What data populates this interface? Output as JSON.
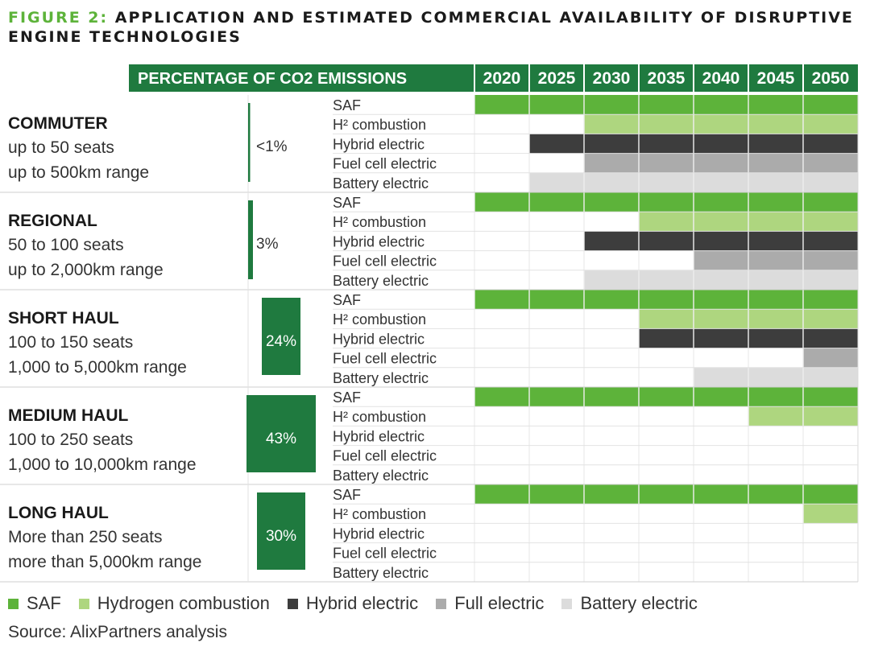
{
  "title": {
    "label": "FIGURE 2:",
    "text": "APPLICATION AND ESTIMATED COMMERCIAL AVAILABILITY OF DISRUPTIVE ENGINE TECHNOLOGIES"
  },
  "source": "Source: AlixPartners analysis",
  "colors": {
    "header_bg": "#1f7a3f",
    "emission_bar": "#1f7a3f",
    "SAF": "#5db33a",
    "Hydrogen combustion": "#aed67f",
    "Hybrid electric": "#3d3d3d",
    "Full electric": "#ababab",
    "Battery electric": "#dcdcdc"
  },
  "chart_data": {
    "type": "table",
    "header_label": "PERCENTAGE OF CO2 EMISSIONS",
    "years": [
      "2020",
      "2025",
      "2030",
      "2035",
      "2040",
      "2045",
      "2050"
    ],
    "technologies": [
      "SAF",
      "H² combustion",
      "Hybrid electric",
      "Fuel cell electric",
      "Battery electric"
    ],
    "legend": [
      {
        "name": "SAF"
      },
      {
        "name": "Hydrogen combustion"
      },
      {
        "name": "Hybrid electric"
      },
      {
        "name": "Full electric"
      },
      {
        "name": "Battery electric"
      }
    ],
    "segments": [
      {
        "name": "COMMUTER",
        "seats": "up to 50 seats",
        "range": "up to 500km range",
        "emissions_percent": 0.5,
        "emissions_label": "<1%",
        "availability_start": {
          "SAF": "2020",
          "H² combustion": "2030",
          "Hybrid electric": "2025",
          "Fuel cell electric": "2030",
          "Battery electric": "2025"
        }
      },
      {
        "name": "REGIONAL",
        "seats": "50 to 100 seats",
        "range": "up to 2,000km range",
        "emissions_percent": 3,
        "emissions_label": "3%",
        "availability_start": {
          "SAF": "2020",
          "H² combustion": "2035",
          "Hybrid electric": "2030",
          "Fuel cell electric": "2040",
          "Battery electric": "2030"
        }
      },
      {
        "name": "SHORT HAUL",
        "seats": "100 to 150 seats",
        "range": "1,000 to 5,000km range",
        "emissions_percent": 24,
        "emissions_label": "24%",
        "availability_start": {
          "SAF": "2020",
          "H² combustion": "2035",
          "Hybrid electric": "2035",
          "Fuel cell electric": "2050",
          "Battery electric": "2040"
        }
      },
      {
        "name": "MEDIUM HAUL",
        "seats": "100 to 250 seats",
        "range": "1,000 to 10,000km range",
        "emissions_percent": 43,
        "emissions_label": "43%",
        "availability_start": {
          "SAF": "2020",
          "H² combustion": "2045",
          "Hybrid electric": null,
          "Fuel cell electric": null,
          "Battery electric": null
        }
      },
      {
        "name": "LONG HAUL",
        "seats": "More than 250 seats",
        "range": "more than 5,000km range",
        "emissions_percent": 30,
        "emissions_label": "30%",
        "availability_start": {
          "SAF": "2020",
          "H² combustion": "2050",
          "Hybrid electric": null,
          "Fuel cell electric": null,
          "Battery electric": null
        }
      }
    ]
  }
}
